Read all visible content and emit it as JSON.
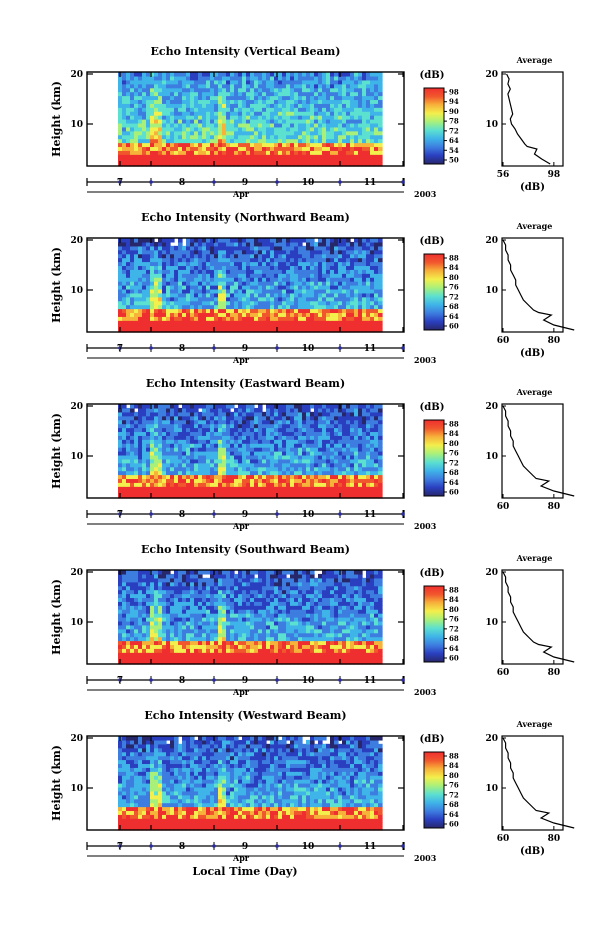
{
  "chart_data": [
    {
      "type": "heatmap",
      "title": "Echo Intensity (Vertical Beam)",
      "ylabel": "Height (km)",
      "ylim": [
        2,
        20
      ],
      "yticks": [
        "20",
        "10"
      ],
      "x_ticks": [
        "7",
        "8",
        "9",
        "10",
        "11"
      ],
      "month_label": "Apr",
      "year_label": "2003",
      "colorbar": {
        "title": "(dB)",
        "ticks": [
          "98",
          "94",
          "90",
          "78",
          "72",
          "64",
          "54",
          "50"
        ],
        "range": [
          50,
          98
        ]
      },
      "average_profile": {
        "title": "Average",
        "xlabel": "(dB)",
        "xticks": [
          "56",
          "98"
        ],
        "yticks": [
          "20",
          "10"
        ],
        "height_km": [
          2,
          3,
          4,
          5,
          5.5,
          6,
          7,
          8,
          9,
          10,
          11,
          12,
          13,
          14,
          15,
          16,
          17,
          18,
          19,
          20
        ],
        "db": [
          95,
          88,
          82,
          84,
          76,
          74,
          71,
          68,
          66,
          63,
          62,
          64,
          63,
          62,
          61,
          60,
          62,
          60,
          61,
          59
        ]
      }
    },
    {
      "type": "heatmap",
      "title": "Echo Intensity (Northward Beam)",
      "ylabel": "Height (km)",
      "ylim": [
        2,
        20
      ],
      "yticks": [
        "20",
        "10"
      ],
      "x_ticks": [
        "7",
        "8",
        "9",
        "10",
        "11"
      ],
      "month_label": "Apr",
      "year_label": "2003",
      "colorbar": {
        "title": "(dB)",
        "ticks": [
          "88",
          "84",
          "80",
          "76",
          "72",
          "68",
          "64",
          "60"
        ],
        "range": [
          60,
          88
        ]
      },
      "average_profile": {
        "title": "Average",
        "xlabel": "(dB)",
        "xticks": [
          "60",
          "80"
        ],
        "yticks": [
          "20",
          "10"
        ],
        "height_km": [
          2,
          3,
          4,
          5,
          5.5,
          6,
          7,
          8,
          9,
          10,
          11,
          12,
          13,
          14,
          15,
          16,
          17,
          18,
          19,
          20
        ],
        "db": [
          88,
          80,
          76,
          79,
          74,
          72,
          70,
          68,
          67,
          66,
          65,
          65,
          64,
          63,
          63,
          62,
          62,
          61,
          61,
          60
        ]
      }
    },
    {
      "type": "heatmap",
      "title": "Echo Intensity (Eastward Beam)",
      "ylabel": "Height (km)",
      "ylim": [
        2,
        20
      ],
      "yticks": [
        "20",
        "10"
      ],
      "x_ticks": [
        "7",
        "8",
        "9",
        "10",
        "11"
      ],
      "month_label": "Apr",
      "year_label": "2003",
      "colorbar": {
        "title": "(dB)",
        "ticks": [
          "88",
          "84",
          "80",
          "76",
          "72",
          "68",
          "64",
          "60"
        ],
        "range": [
          60,
          88
        ]
      },
      "average_profile": {
        "title": "Average",
        "xlabel": "",
        "xticks": [
          "60",
          "80"
        ],
        "yticks": [
          "20",
          "10"
        ],
        "height_km": [
          2,
          3,
          4,
          5,
          5.5,
          6,
          7,
          8,
          9,
          10,
          11,
          12,
          13,
          14,
          15,
          16,
          17,
          18,
          19,
          20
        ],
        "db": [
          88,
          80,
          75,
          78,
          73,
          72,
          70,
          68,
          67,
          66,
          65,
          64,
          64,
          63,
          63,
          62,
          62,
          61,
          61,
          60
        ]
      }
    },
    {
      "type": "heatmap",
      "title": "Echo Intensity (Southward Beam)",
      "ylabel": "Height (km)",
      "ylim": [
        2,
        20
      ],
      "yticks": [
        "20",
        "10"
      ],
      "x_ticks": [
        "7",
        "8",
        "9",
        "10",
        "11"
      ],
      "month_label": "Apr",
      "year_label": "2003",
      "colorbar": {
        "title": "(dB)",
        "ticks": [
          "88",
          "84",
          "80",
          "76",
          "72",
          "68",
          "64",
          "60"
        ],
        "range": [
          60,
          88
        ]
      },
      "average_profile": {
        "title": "Average",
        "xlabel": "",
        "xticks": [
          "60",
          "80"
        ],
        "yticks": [
          "20",
          "10"
        ],
        "height_km": [
          2,
          3,
          4,
          5,
          5.5,
          6,
          7,
          8,
          9,
          10,
          11,
          12,
          13,
          14,
          15,
          16,
          17,
          18,
          19,
          20
        ],
        "db": [
          88,
          80,
          76,
          79,
          74,
          72,
          70,
          68,
          67,
          66,
          65,
          64,
          64,
          63,
          63,
          62,
          62,
          61,
          61,
          60
        ]
      }
    },
    {
      "type": "heatmap",
      "title": "Echo Intensity (Westward Beam)",
      "ylabel": "Height (km)",
      "ylim": [
        2,
        20
      ],
      "yticks": [
        "20",
        "10"
      ],
      "x_ticks": [
        "7",
        "8",
        "9",
        "10",
        "11"
      ],
      "month_label": "Apr",
      "year_label": "2003",
      "xlabel": "Local Time (Day)",
      "colorbar": {
        "title": "(dB)",
        "ticks": [
          "88",
          "84",
          "80",
          "76",
          "72",
          "68",
          "64",
          "60"
        ],
        "range": [
          60,
          88
        ]
      },
      "average_profile": {
        "title": "Average",
        "xlabel": "(dB)",
        "xticks": [
          "60",
          "80"
        ],
        "yticks": [
          "20",
          "10"
        ],
        "height_km": [
          2,
          3,
          4,
          5,
          5.5,
          6,
          7,
          8,
          9,
          10,
          11,
          12,
          13,
          14,
          15,
          16,
          17,
          18,
          19,
          20
        ],
        "db": [
          88,
          80,
          75,
          78,
          73,
          72,
          70,
          68,
          67,
          66,
          65,
          64,
          64,
          63,
          63,
          62,
          62,
          61,
          61,
          60
        ]
      }
    }
  ],
  "colors": {
    "colormap": [
      "#27276b",
      "#2a3fbf",
      "#3d7de0",
      "#3fb4e8",
      "#5ce0d0",
      "#a8f07a",
      "#f3ef4c",
      "#f7b23a",
      "#f1572d",
      "#ef2f2f"
    ],
    "tick_marker": "#2a2aa0"
  }
}
